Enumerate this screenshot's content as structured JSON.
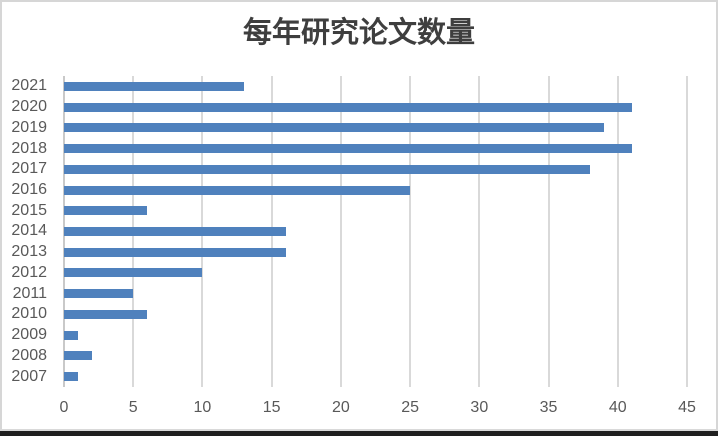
{
  "chart_data": {
    "type": "bar",
    "orientation": "horizontal",
    "title": "每年研究论文数量",
    "categories": [
      "2021",
      "2020",
      "2019",
      "2018",
      "2017",
      "2016",
      "2015",
      "2014",
      "2013",
      "2012",
      "2011",
      "2010",
      "2009",
      "2008",
      "2007"
    ],
    "values": [
      13,
      41,
      39,
      41,
      38,
      25,
      6,
      16,
      16,
      10,
      5,
      6,
      1,
      2,
      1
    ],
    "xlabel": "",
    "ylabel": "",
    "xlim": [
      0,
      45
    ],
    "x_ticks": [
      "0",
      "5",
      "10",
      "15",
      "20",
      "25",
      "30",
      "35",
      "40",
      "45"
    ],
    "grid": "vertical",
    "legend": "none",
    "colors": {
      "bar": "#4f81bd",
      "gridline": "#d9d9d9",
      "axis_line": "#c9c9c9",
      "tick_label": "#595959",
      "title": "#3e3e3e",
      "background": "#ffffff",
      "window_border": "#d6d6d6",
      "bottom_hairline": "#d9d9d9",
      "bottom_bar": "#1f1f1f"
    }
  }
}
